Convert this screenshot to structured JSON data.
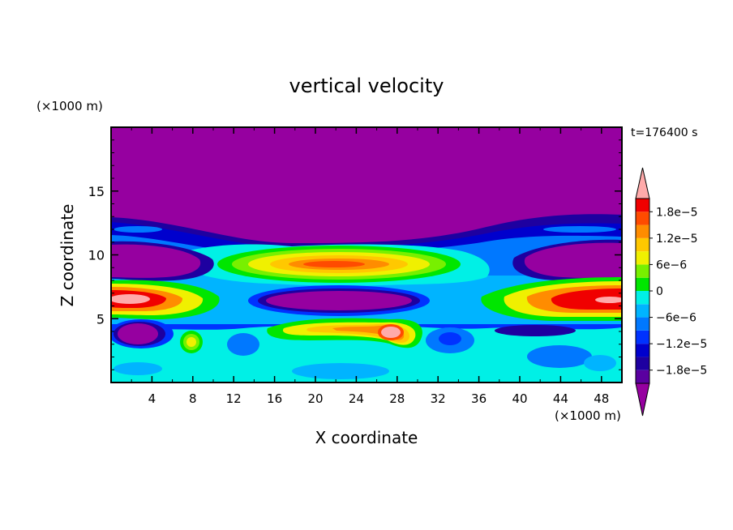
{
  "chart_data": {
    "type": "heatmap",
    "title": "vertical velocity",
    "xlabel": "X coordinate",
    "ylabel": "Z coordinate",
    "x_unit": "(×1000 m)",
    "y_unit": "(×1000 m)",
    "time_label": "t=176400 s",
    "xlim": [
      0,
      50
    ],
    "ylim": [
      0,
      20
    ],
    "x_ticks": [
      4,
      8,
      12,
      16,
      20,
      24,
      28,
      32,
      36,
      40,
      44,
      48
    ],
    "y_ticks": [
      5,
      10,
      15
    ],
    "colorbar": {
      "ticks": [
        {
          "value": -1.8e-05,
          "label": "−1.8e−5"
        },
        {
          "value": -1.2e-05,
          "label": "−1.2e−5"
        },
        {
          "value": -6e-06,
          "label": "−6e−6"
        },
        {
          "value": 0,
          "label": "0"
        },
        {
          "value": 6e-06,
          "label": "6e−6"
        },
        {
          "value": 1.2e-05,
          "label": "1.2e−5"
        },
        {
          "value": 1.8e-05,
          "label": "1.8e−5"
        }
      ],
      "levels": [
        -2.1e-05,
        -1.8e-05,
        -1.5e-05,
        -1.2e-05,
        -9e-06,
        -6e-06,
        -3e-06,
        0,
        3e-06,
        6e-06,
        9e-06,
        1.2e-05,
        1.5e-05,
        1.8e-05,
        2.1e-05
      ],
      "colors": [
        "#9600a0",
        "#5a00a0",
        "#1e00a0",
        "#0000cd",
        "#0032ff",
        "#0078ff",
        "#00b4ff",
        "#00f0e6",
        "#00e600",
        "#78f000",
        "#f0f000",
        "#ffc800",
        "#ff8c00",
        "#ff4b00",
        "#f00000",
        "#ffaaaa"
      ]
    },
    "background_value_color": "#9600a0",
    "features": [
      {
        "x": 2,
        "z": 6.5,
        "w": 2.5,
        "h": 0.4,
        "value": 2.4e-05
      },
      {
        "x": 49,
        "z": 6.3,
        "w": 2.5,
        "h": 0.4,
        "value": 2.4e-05
      },
      {
        "x": 27.5,
        "z": 4.0,
        "w": 1.2,
        "h": 0.5,
        "value": 2.4e-05
      },
      {
        "x": 22,
        "z": 9.2,
        "w": 6,
        "h": 1.1,
        "value": 2e-05
      },
      {
        "x": 24,
        "z": 4.4,
        "w": 4,
        "h": 0.8,
        "value": 1.2e-05
      },
      {
        "x": 7.8,
        "z": 3.2,
        "w": 1.0,
        "h": 0.7,
        "value": 1.1e-05
      },
      {
        "x": 46,
        "z": 6.1,
        "w": 3,
        "h": 1.0,
        "value": 1.8e-05
      }
    ]
  }
}
